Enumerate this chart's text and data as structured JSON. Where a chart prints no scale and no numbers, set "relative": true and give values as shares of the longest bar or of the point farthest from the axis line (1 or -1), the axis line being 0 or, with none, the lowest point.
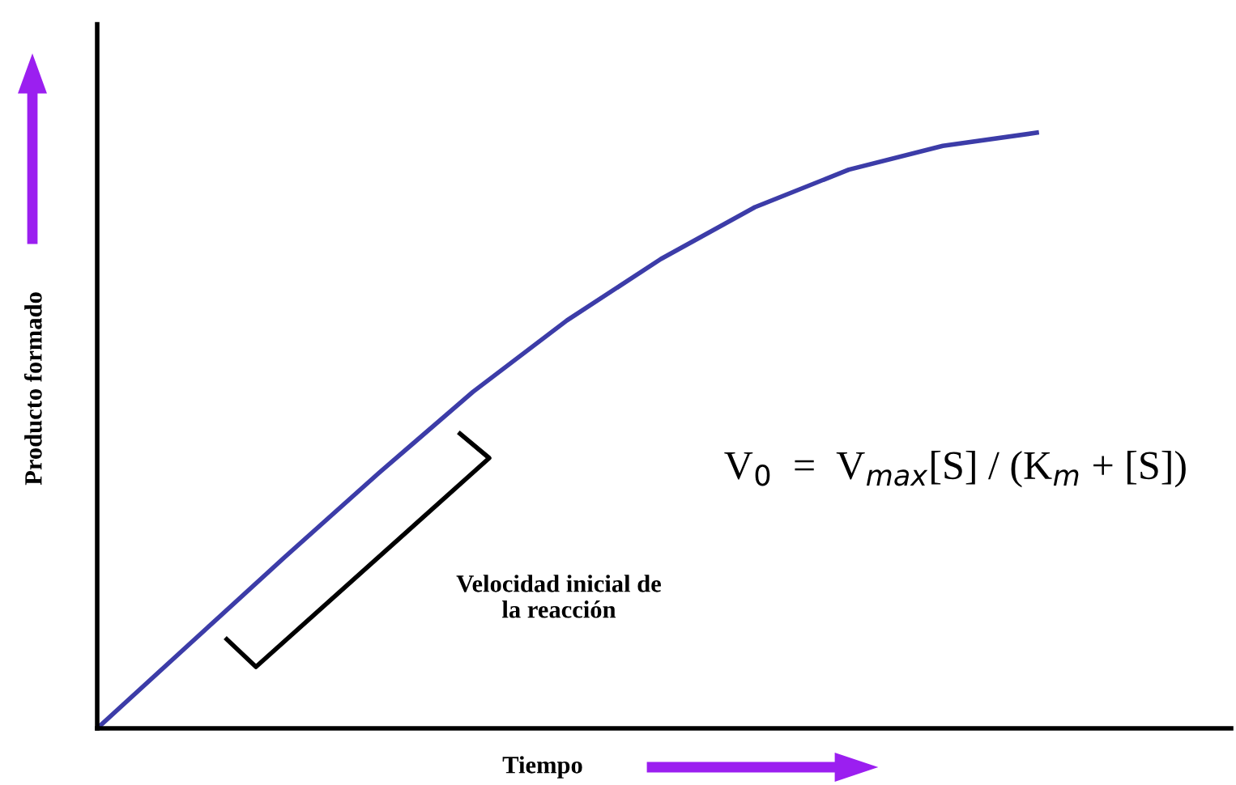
{
  "chart_data": {
    "type": "line",
    "relative": true,
    "xlabel": "Tiempo",
    "ylabel": "Producto formado",
    "categories": [
      null,
      null,
      null,
      null,
      null,
      null,
      null,
      null,
      null,
      null,
      null
    ],
    "series": [
      {
        "color": "#3c3ca8",
        "values": [
          0,
          0.144,
          0.288,
          0.429,
          0.565,
          0.685,
          0.788,
          0.875,
          0.938,
          0.978,
          1
        ]
      }
    ],
    "annotations": [
      "Velocidad inicial de\nla reacción",
      "V$_{0}$  =  V$_{max}$[S] / (K$_{m}$ + [S])"
    ],
    "legend": false,
    "marker": "none",
    "line_style": "solid"
  }
}
